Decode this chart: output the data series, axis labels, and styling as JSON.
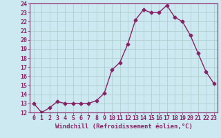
{
  "x": [
    0,
    1,
    2,
    3,
    4,
    5,
    6,
    7,
    8,
    9,
    10,
    11,
    12,
    13,
    14,
    15,
    16,
    17,
    18,
    19,
    20,
    21,
    22,
    23
  ],
  "y": [
    13,
    12,
    12.5,
    13.2,
    13,
    13,
    13,
    13,
    13.3,
    14.1,
    16.7,
    17.5,
    19.5,
    22.2,
    23.3,
    23,
    23,
    23.8,
    22.5,
    22,
    20.5,
    18.5,
    16.5,
    15.2
  ],
  "line_color": "#882266",
  "marker": "D",
  "markersize": 2.5,
  "linewidth": 1.0,
  "bg_color": "#cce8f0",
  "grid_color": "#aacccc",
  "xlabel": "Windchill (Refroidissement éolien,°C)",
  "xlabel_fontsize": 6.5,
  "tick_label_fontsize": 6.0,
  "ylim": [
    12,
    24
  ],
  "xlim": [
    -0.5,
    23.5
  ],
  "yticks": [
    12,
    13,
    14,
    15,
    16,
    17,
    18,
    19,
    20,
    21,
    22,
    23,
    24
  ],
  "xticks": [
    0,
    1,
    2,
    3,
    4,
    5,
    6,
    7,
    8,
    9,
    10,
    11,
    12,
    13,
    14,
    15,
    16,
    17,
    18,
    19,
    20,
    21,
    22,
    23
  ]
}
